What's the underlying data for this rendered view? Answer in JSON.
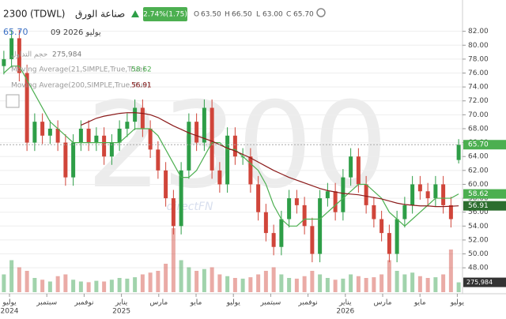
{
  "header": {
    "symbol": "2300",
    "exchange": "(TDWL)",
    "name": "صناعة الورق",
    "change": "2.74%(1.75)",
    "open_label": "O",
    "open": "63.50",
    "high_label": "H",
    "high": "66.50",
    "low_label": "L",
    "low": "63.00",
    "close_label": "C",
    "close": "65.70",
    "last": "65.70",
    "date": "09 2026 يوليو"
  },
  "legend": {
    "volume": {
      "name": "حجم التداول",
      "value": "275,984"
    },
    "ma21": {
      "name": "Moving Average(21,SIMPLE,True,True)",
      "value": "58.62"
    },
    "ma200": {
      "name": "Moving Average(200,SIMPLE,True,True)",
      "value": "56.91"
    }
  },
  "watermark": {
    "symbol": "2300",
    "brand": "directFN"
  },
  "chart_data": {
    "type": "candlestick",
    "open": [
      77,
      78,
      81,
      76,
      66,
      69,
      67,
      68,
      66,
      61,
      66,
      68,
      66,
      67,
      64,
      66,
      68,
      69,
      71,
      68,
      65,
      62,
      58,
      54,
      62,
      69,
      66,
      71,
      62,
      60,
      67,
      64,
      64,
      60,
      56,
      53,
      51,
      55,
      58,
      57,
      54,
      50,
      58,
      59,
      56,
      61,
      64,
      60,
      57,
      55,
      53,
      50,
      55,
      57,
      60,
      59,
      58,
      60,
      57,
      63.5
    ],
    "high": [
      79.2,
      82.2,
      82.2,
      77.2,
      70.2,
      70.2,
      69.2,
      69.2,
      67.2,
      67.2,
      69.2,
      69.2,
      68.2,
      68.2,
      67.2,
      69.2,
      70.2,
      72.2,
      72.2,
      69.2,
      66.2,
      63.2,
      59.2,
      63.2,
      70.2,
      70.2,
      72.2,
      72.2,
      63.2,
      68.2,
      68.2,
      65.2,
      65.2,
      61.2,
      57.2,
      54.2,
      56.2,
      59.2,
      59.2,
      58.2,
      55.2,
      59.2,
      60.2,
      60.2,
      62.2,
      65.2,
      65.2,
      61.2,
      58.2,
      56.2,
      54.2,
      56.2,
      58.2,
      61.2,
      61.2,
      60.2,
      61.2,
      61.2,
      58.2,
      66.5
    ],
    "low": [
      75.8,
      76.8,
      74.8,
      64.8,
      64.8,
      65.8,
      65.8,
      64.8,
      59.8,
      59.8,
      64.8,
      64.8,
      64.8,
      62.8,
      62.8,
      64.8,
      66.8,
      67.8,
      66.8,
      63.8,
      60.8,
      56.8,
      52.8,
      52.8,
      60.8,
      64.8,
      64.8,
      60.8,
      58.8,
      58.8,
      62.8,
      62.8,
      58.8,
      54.8,
      51.8,
      49.8,
      49.8,
      53.8,
      55.8,
      52.8,
      48.8,
      48.8,
      56.8,
      54.8,
      54.8,
      59.8,
      58.8,
      55.8,
      53.8,
      51.8,
      48.8,
      48.8,
      53.8,
      55.8,
      57.8,
      56.8,
      56.8,
      55.8,
      53.8,
      63
    ],
    "close": [
      78,
      81,
      76,
      66,
      69,
      67,
      68,
      66,
      61,
      66,
      68,
      66,
      67,
      64,
      66,
      68,
      69,
      71,
      68,
      65,
      62,
      58,
      54,
      62,
      69,
      66,
      71,
      62,
      60,
      67,
      64,
      64,
      60,
      56,
      53,
      51,
      55,
      58,
      57,
      54,
      50,
      58,
      59,
      56,
      61,
      64,
      60,
      57,
      55,
      53,
      50,
      55,
      57,
      60,
      59,
      58,
      60,
      57,
      55,
      65.7
    ],
    "volume": [
      500000,
      900000,
      700000,
      600000,
      400000,
      350000,
      300000,
      450000,
      500000,
      350000,
      300000,
      280000,
      320000,
      300000,
      350000,
      400000,
      380000,
      420000,
      500000,
      550000,
      600000,
      800000,
      1800000,
      900000,
      700000,
      600000,
      650000,
      700000,
      500000,
      450000,
      400000,
      380000,
      420000,
      500000,
      600000,
      700000,
      500000,
      400000,
      380000,
      450000,
      600000,
      500000,
      400000,
      350000,
      380000,
      500000,
      450000,
      400000,
      420000,
      500000,
      900000,
      600000,
      500000,
      550000,
      450000,
      400000,
      420000,
      500000,
      1200000,
      275984
    ],
    "series": [
      {
        "name": "Moving Average(21,SIMPLE,True,True)",
        "color": "#4caf50",
        "values": [
          76,
          77,
          77,
          75,
          73,
          71,
          69,
          68,
          67,
          66,
          66,
          66,
          66,
          66,
          66,
          66,
          67,
          68,
          68,
          68,
          67,
          65,
          63,
          61,
          61,
          62,
          64,
          66,
          66,
          65,
          65,
          64,
          63,
          62,
          60,
          57,
          55,
          54,
          54,
          55,
          55,
          55,
          56,
          57,
          58,
          59,
          60,
          60,
          59,
          58,
          56,
          55,
          54,
          55,
          56,
          57,
          58,
          58,
          58,
          58.62
        ]
      },
      {
        "name": "Moving Average(200,SIMPLE,True,True)",
        "color": "#8b1a1a",
        "values": [
          null,
          null,
          null,
          null,
          null,
          null,
          null,
          null,
          null,
          null,
          68.5,
          69,
          69.5,
          69.8,
          70,
          70.2,
          70.3,
          70.3,
          70.2,
          70,
          69.6,
          69,
          68.4,
          67.9,
          67.4,
          67,
          66.6,
          66.2,
          65.7,
          65.2,
          64.8,
          64.3,
          63.8,
          63.2,
          62.6,
          62,
          61.5,
          61,
          60.6,
          60.2,
          59.8,
          59.4,
          59.1,
          58.9,
          58.7,
          58.6,
          58.5,
          58.3,
          58.1,
          57.9,
          57.6,
          57.3,
          57.1,
          57,
          56.9,
          56.9,
          56.8,
          56.8,
          56.85,
          56.91
        ]
      }
    ],
    "up_color": "#2e9e47",
    "down_color": "#d0453a",
    "ylim": [
      44.5,
      86.5
    ],
    "volume_lim": [
      0,
      2000000
    ],
    "yticks": [
      {
        "value": 48,
        "label": "48.00"
      },
      {
        "value": 50,
        "label": "50.00"
      },
      {
        "value": 52,
        "label": "52.00"
      },
      {
        "value": 54,
        "label": "54.00"
      },
      {
        "value": 56,
        "label": "56.00"
      },
      {
        "value": 58,
        "label": "58.00"
      },
      {
        "value": 60,
        "label": "60.00"
      },
      {
        "value": 62,
        "label": "62.00"
      },
      {
        "value": 64,
        "label": "64.00"
      },
      {
        "value": 66,
        "label": "66.00"
      },
      {
        "value": 68,
        "label": "68.00"
      },
      {
        "value": 70,
        "label": "70.00"
      },
      {
        "value": 72,
        "label": "72.00"
      },
      {
        "value": 74,
        "label": "74.00"
      },
      {
        "value": 76,
        "label": "76.00"
      },
      {
        "value": 78,
        "label": "78.00"
      },
      {
        "value": 80,
        "label": "80.00"
      },
      {
        "value": 82,
        "label": "82.00"
      }
    ],
    "x_labels": [
      {
        "month": "يوليو",
        "year": "2024"
      },
      {
        "month": "سبتمبر"
      },
      {
        "month": "نوفمبر"
      },
      {
        "month": "يناير",
        "year": "2025"
      },
      {
        "month": "مارس"
      },
      {
        "month": "مايو"
      },
      {
        "month": "يوليو"
      },
      {
        "month": "سبتمبر"
      },
      {
        "month": "نوفمبر"
      },
      {
        "month": "يناير",
        "year": "2026"
      },
      {
        "month": "مارس"
      },
      {
        "month": "مايو"
      },
      {
        "month": "يوليو"
      }
    ],
    "grid": true
  }
}
